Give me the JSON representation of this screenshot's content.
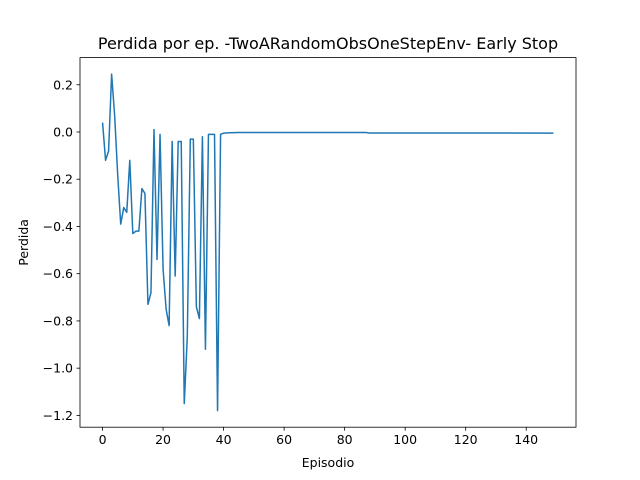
{
  "chart_data": {
    "type": "line",
    "title": "Perdida por ep. -TwoARandomObsOneStepEnv- Early Stop",
    "xlabel": "Episodio",
    "ylabel": "Perdida",
    "xlim": [
      -7.45,
      156.45
    ],
    "ylim": [
      -1.25,
      0.315
    ],
    "xticks": [
      0,
      20,
      40,
      60,
      80,
      100,
      120,
      140
    ],
    "yticks": [
      0.2,
      0.0,
      -0.2,
      -0.4,
      -0.6,
      -0.8,
      -1.0,
      -1.2
    ],
    "xtick_labels": [
      "0",
      "20",
      "40",
      "60",
      "80",
      "100",
      "120",
      "140"
    ],
    "ytick_labels": [
      "0.2",
      "0.0",
      "−0.2",
      "−0.4",
      "−0.6",
      "−0.8",
      "−1.0",
      "−1.2"
    ],
    "grid": false,
    "line_color": "#1f77b4",
    "series": [
      {
        "x": [
          0,
          1,
          2,
          3,
          4,
          5,
          6,
          7,
          8,
          9,
          10,
          11,
          12,
          13,
          14,
          15,
          16,
          17,
          18,
          19,
          20,
          21,
          22,
          23,
          24,
          25,
          26,
          27,
          28,
          29,
          30,
          31,
          32,
          33,
          34,
          35,
          36,
          37,
          38,
          39,
          40,
          42,
          45,
          50,
          60,
          70,
          80,
          87,
          88,
          100,
          120,
          149
        ],
        "values": [
          0.04,
          -0.12,
          -0.08,
          0.245,
          0.07,
          -0.18,
          -0.39,
          -0.32,
          -0.34,
          -0.12,
          -0.43,
          -0.42,
          -0.42,
          -0.24,
          -0.26,
          -0.73,
          -0.68,
          0.01,
          -0.54,
          -0.01,
          -0.58,
          -0.75,
          -0.82,
          -0.04,
          -0.61,
          -0.04,
          -0.04,
          -1.15,
          -0.87,
          -0.03,
          -0.03,
          -0.74,
          -0.79,
          -0.02,
          -0.92,
          -0.01,
          -0.01,
          -0.01,
          -1.18,
          -0.01,
          -0.005,
          -0.003,
          -0.002,
          -0.002,
          -0.002,
          -0.002,
          -0.002,
          -0.002,
          -0.004,
          -0.004,
          -0.004,
          -0.005
        ]
      }
    ]
  }
}
